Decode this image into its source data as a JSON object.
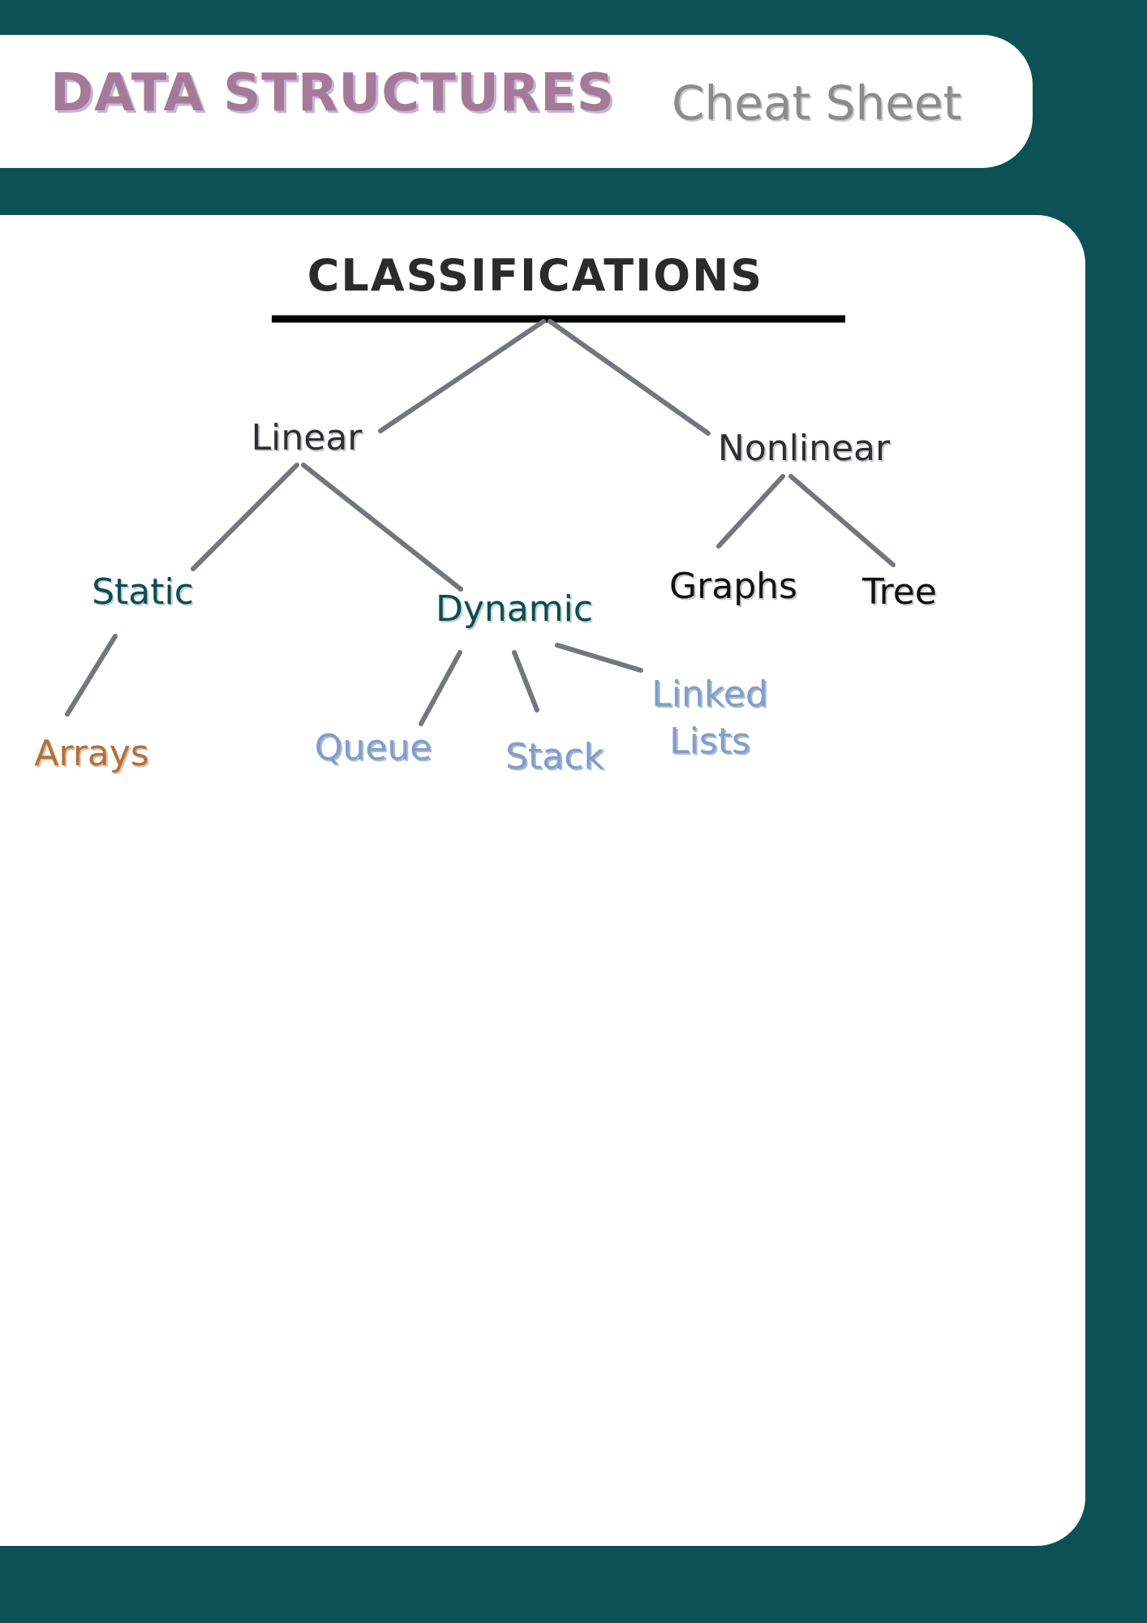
{
  "header": {
    "title": "DATA STRUCTURES",
    "subtitle": "Cheat Sheet"
  },
  "diagram": {
    "section_title": "CLASSIFICATIONS",
    "nodes": {
      "linear": "Linear",
      "nonlinear": "Nonlinear",
      "static": "Static",
      "dynamic": "Dynamic",
      "graphs": "Graphs",
      "tree": "Tree",
      "arrays": "Arrays",
      "queue": "Queue",
      "stack": "Stack",
      "linked_lists_line1": "Linked",
      "linked_lists_line2": "Lists"
    },
    "colors": {
      "background": "#0c5254",
      "connector": "#72767d",
      "title_purple": "#a47a98",
      "subtitle_gray": "#8c8c8c",
      "teal_text": "#0e4b52",
      "blue_text": "#7f9fc9",
      "orange_text": "#b2703c"
    }
  }
}
